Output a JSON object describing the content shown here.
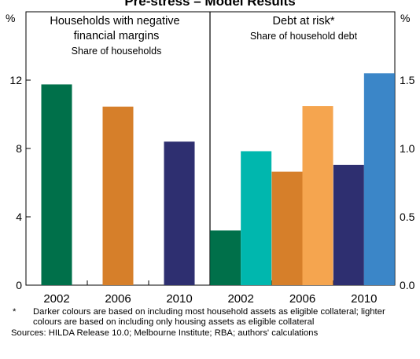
{
  "title": "Pre-stress – Model Results",
  "notes": {
    "footnote_mark": "*",
    "footnote": "Darker colours are based on including most household assets as eligible collateral; lighter colours are based on including only housing assets as eligible collateral",
    "sources": "Sources: HILDA Release 10.0; Melbourne Institute; RBA; authors' calculations"
  },
  "chart_data": [
    {
      "type": "bar",
      "title": "Households with negative financial margins",
      "subtitle": "Share of households",
      "unit": "%",
      "categories": [
        "2002",
        "2006",
        "2010"
      ],
      "series": [
        {
          "values": [
            11.75,
            10.45,
            8.4
          ],
          "colors": [
            "#00704a",
            "#d67f2a",
            "#2e2f70"
          ]
        }
      ],
      "ylim": [
        0,
        16
      ],
      "yticks": [
        "0",
        "4",
        "8",
        "12"
      ],
      "ytick_values": [
        0,
        4,
        8,
        12
      ],
      "grid": false
    },
    {
      "type": "bar",
      "title": "Debt at risk*",
      "subtitle": "Share of household debt",
      "unit": "%",
      "categories": [
        "2002",
        "2006",
        "2010"
      ],
      "series": [
        {
          "name": "Most household assets as eligible collateral",
          "values": [
            0.4,
            0.83,
            0.88
          ],
          "colors": [
            "#00704a",
            "#d67f2a",
            "#2e2f70"
          ]
        },
        {
          "name": "Only housing assets as eligible collateral",
          "values": [
            0.98,
            1.31,
            1.55
          ],
          "colors": [
            "#00b7ae",
            "#f5a54f",
            "#3b86c8"
          ]
        }
      ],
      "ylim": [
        0,
        2
      ],
      "yticks": [
        "0.0",
        "0.5",
        "1.0",
        "1.5"
      ],
      "ytick_values": [
        0,
        0.5,
        1.0,
        1.5
      ],
      "grid": false
    }
  ],
  "colors": {
    "axis": "#000000",
    "background": "#ffffff"
  }
}
